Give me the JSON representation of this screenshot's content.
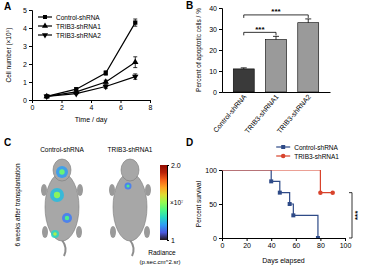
{
  "chart_data": [
    {
      "type": "line",
      "panel": "A",
      "x_label": "Time / day",
      "y_label": "Cell number (×10⁵)",
      "x": [
        1,
        3,
        5,
        7
      ],
      "xlim": [
        0,
        8
      ],
      "xticks": [
        0,
        2,
        4,
        6,
        8
      ],
      "ylim": [
        0,
        5
      ],
      "yticks": [
        0,
        1,
        2,
        3,
        4,
        5
      ],
      "legend": "upper left",
      "series": [
        {
          "name": "Control-shRNA",
          "color": "#000000",
          "marker": "square",
          "values": [
            0.2,
            0.6,
            1.5,
            4.3
          ],
          "errors": [
            0.05,
            0.08,
            0.12,
            0.2
          ]
        },
        {
          "name": "TRIB3-shRNA1",
          "color": "#000000",
          "marker": "triangle",
          "values": [
            0.2,
            0.45,
            1.0,
            2.1
          ],
          "errors": [
            0.05,
            0.06,
            0.1,
            0.3
          ]
        },
        {
          "name": "TRIB3-shRNA2",
          "color": "#000000",
          "marker": "triangle-down",
          "values": [
            0.2,
            0.35,
            0.75,
            1.3
          ],
          "errors": [
            0.05,
            0.05,
            0.1,
            0.15
          ]
        }
      ]
    },
    {
      "type": "bar",
      "panel": "B",
      "y_label": "Percent of apoptotic cells / %",
      "categories": [
        "Control-shRNA",
        "TRIB3-shRNA1",
        "TRIB3-shRNA2"
      ],
      "values": [
        11,
        25,
        33
      ],
      "errors": [
        0.5,
        1.5,
        1.8
      ],
      "colors": [
        "#3a3a3a",
        "#9a9a9a",
        "#9a9a9a"
      ],
      "ylim": [
        0,
        40
      ],
      "yticks": [
        0,
        10,
        20,
        30,
        40
      ],
      "annotations": [
        {
          "text": "***",
          "between": [
            0,
            1
          ]
        },
        {
          "text": "***",
          "between": [
            0,
            2
          ]
        }
      ]
    },
    {
      "type": "image",
      "panel": "C",
      "labels": [
        "Control-shRNA",
        "TRIB3-shRNA1"
      ],
      "side_label": "6 weeks after transplantation",
      "colorbar": {
        "title": "Radiance",
        "units": "(p.sec.cm^2.sr)",
        "multiplier": "×10⁷",
        "range": [
          1,
          2.0
        ],
        "ticks": [
          {
            "value": 2.0,
            "label": "2.0"
          },
          1
        ]
      }
    },
    {
      "type": "line",
      "panel": "D",
      "x_label": "Days elapsed",
      "y_label": "Percent survival",
      "xlim": [
        0,
        100
      ],
      "xticks": [
        0,
        20,
        40,
        60,
        80,
        100
      ],
      "ylim": [
        0,
        100
      ],
      "yticks": [
        0,
        50,
        100
      ],
      "line_style": "step",
      "legend": "upper right",
      "series": [
        {
          "name": "Control-shRNA",
          "color": "#2e4a87",
          "marker": "square",
          "x": [
            0,
            40,
            47,
            55,
            58,
            78
          ],
          "values": [
            100,
            83.3,
            66.7,
            50,
            33.3,
            0
          ]
        },
        {
          "name": "TRIB3-shRNA1",
          "color": "#d8432c",
          "marker": "circle",
          "x": [
            0,
            80,
            90
          ],
          "values": [
            100,
            66.7,
            66.7
          ]
        }
      ],
      "annotations": [
        {
          "text": "***"
        }
      ]
    }
  ]
}
